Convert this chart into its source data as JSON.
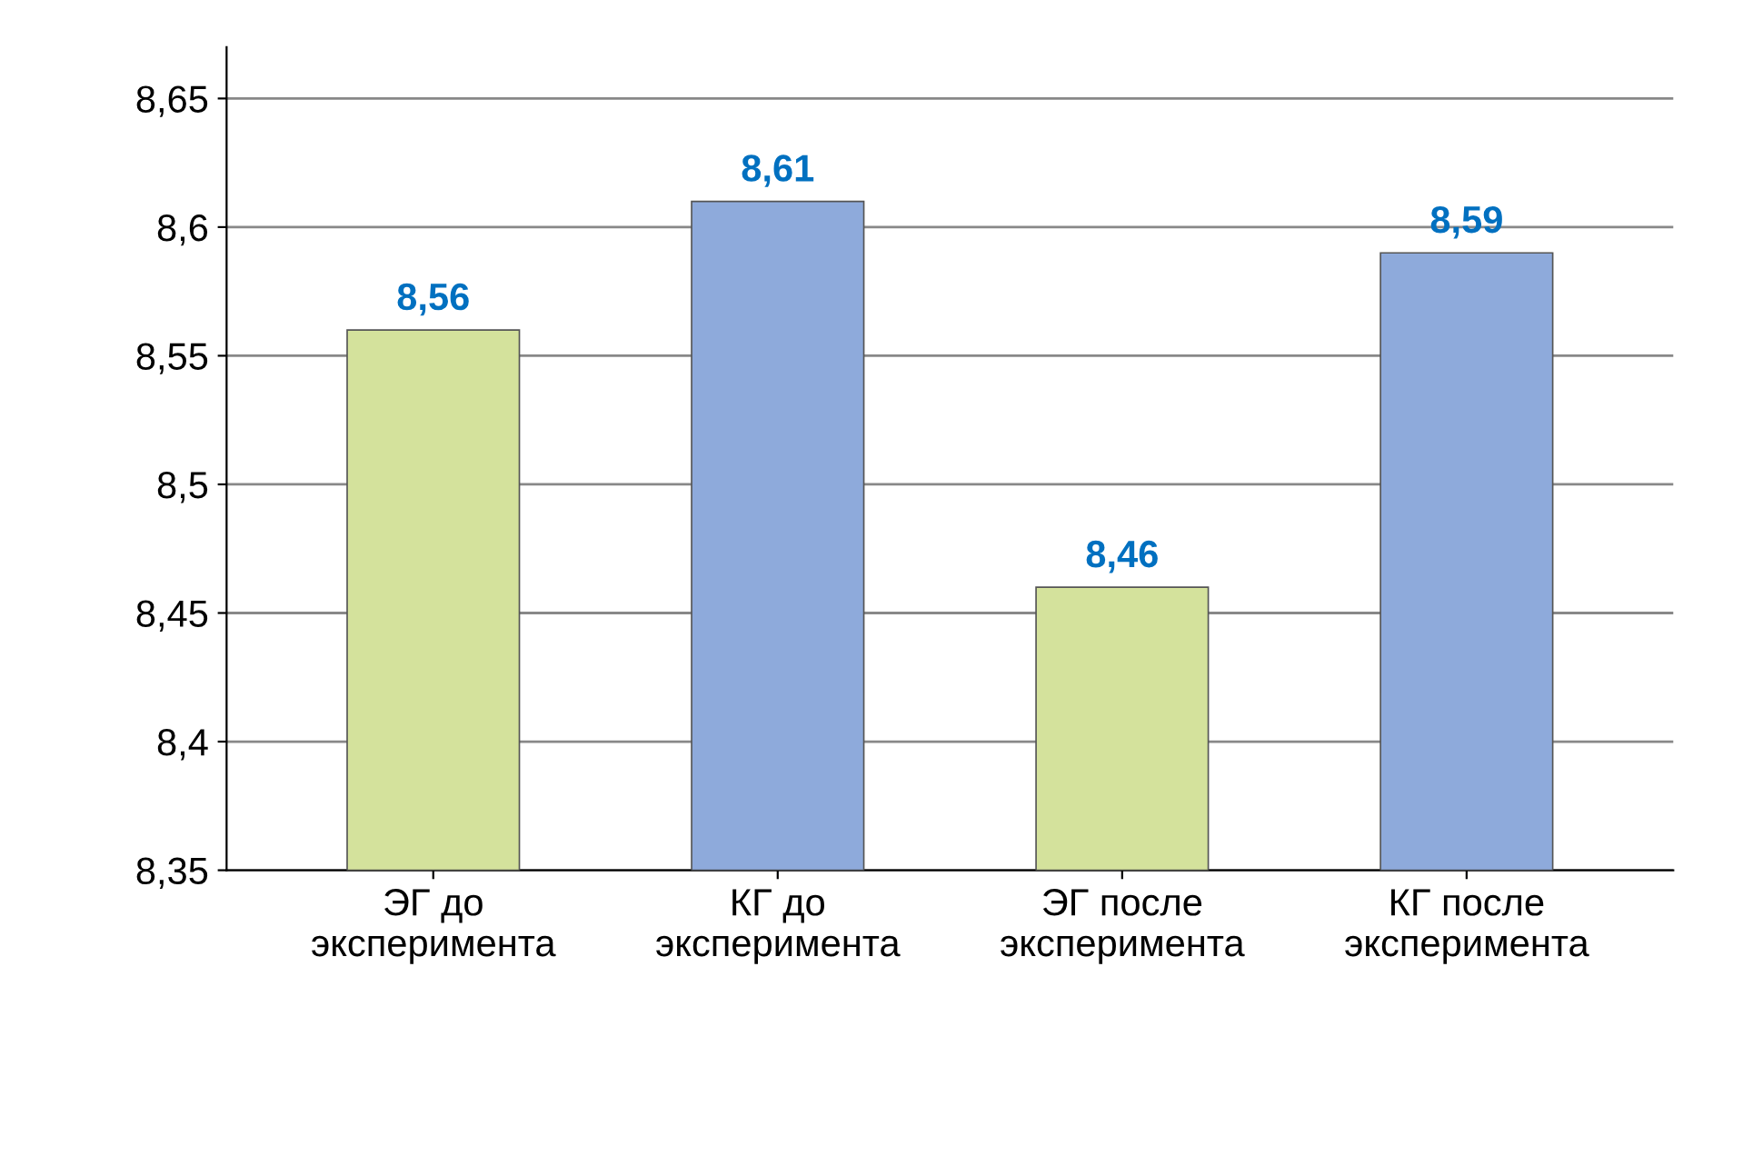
{
  "chart_data": {
    "type": "bar",
    "categories": [
      "ЭГ до\nэксперимента",
      "КГ до\nэксперимента",
      "ЭГ после\nэксперимента",
      "КГ после\nэксперимента"
    ],
    "values": [
      8.56,
      8.61,
      8.46,
      8.59
    ],
    "value_labels": [
      "8,56",
      "8,61",
      "8,46",
      "8,59"
    ],
    "colors": [
      "#d4e29c",
      "#8eaadb",
      "#d4e29c",
      "#8eaadb"
    ],
    "ylim": [
      8.35,
      8.67
    ],
    "yticks": [
      {
        "value": 8.35,
        "label": "8,35"
      },
      {
        "value": 8.4,
        "label": "8,4"
      },
      {
        "value": 8.45,
        "label": "8,45"
      },
      {
        "value": 8.5,
        "label": "8,5"
      },
      {
        "value": 8.55,
        "label": "8,55"
      },
      {
        "value": 8.6,
        "label": "8,6"
      },
      {
        "value": 8.65,
        "label": "8,65"
      }
    ],
    "grid": "y",
    "legend": false
  }
}
